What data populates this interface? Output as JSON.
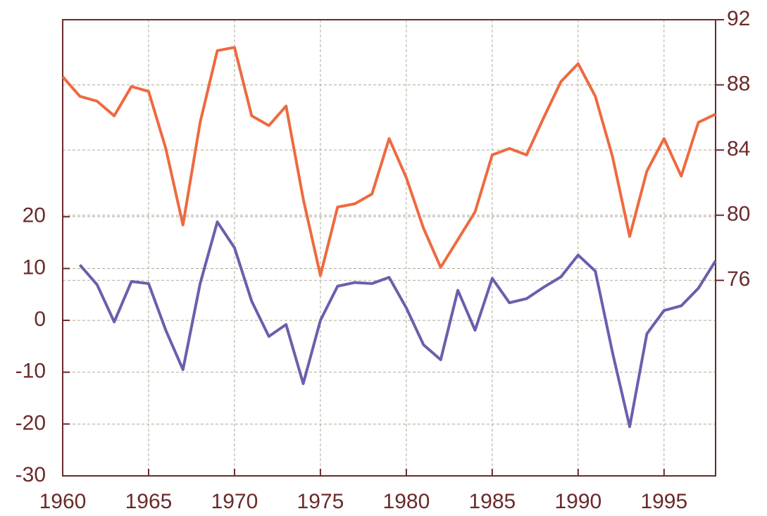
{
  "chart_data": {
    "type": "line",
    "x": [
      1960,
      1961,
      1962,
      1963,
      1964,
      1965,
      1966,
      1967,
      1968,
      1969,
      1970,
      1971,
      1972,
      1973,
      1974,
      1975,
      1976,
      1977,
      1978,
      1979,
      1980,
      1981,
      1982,
      1983,
      1984,
      1985,
      1986,
      1987,
      1988,
      1989,
      1990,
      1991,
      1992,
      1993,
      1994,
      1995,
      1996,
      1997,
      1998
    ],
    "series": [
      {
        "color": "#6a5fad",
        "axis": "y",
        "values": [
          null,
          10.7,
          6.9,
          -0.3,
          7.5,
          7.1,
          -1.9,
          -9.5,
          7.1,
          19.0,
          14.0,
          3.7,
          -3.1,
          -0.8,
          -12.2,
          0,
          6.6,
          7.3,
          7.1,
          8.3,
          2.4,
          -4.7,
          -7.6,
          5.8,
          -1.9,
          8.1,
          3.4,
          4.2,
          6.4,
          8.4,
          12.6,
          9.5,
          -6.2,
          -20.5,
          -2.6,
          1.9,
          2.8,
          6.2,
          11.5
        ]
      },
      {
        "color": "#ee6a40",
        "axis": "y2",
        "values": [
          88.5,
          87.3,
          87.0,
          86.1,
          87.9,
          87.6,
          84.1,
          79.4,
          85.7,
          90.1,
          90.3,
          86.1,
          85.5,
          86.7,
          81.0,
          76.3,
          80.5,
          80.7,
          81.3,
          84.7,
          82.3,
          79.2,
          76.8,
          78.5,
          80.2,
          83.7,
          84.1,
          83.7,
          86.0,
          88.2,
          89.3,
          87.3,
          83.6,
          78.7,
          82.7,
          84.7,
          82.4,
          85.7,
          86.2
        ]
      }
    ],
    "xlim": [
      1960,
      1998
    ],
    "xticks": [
      1960,
      1965,
      1970,
      1975,
      1980,
      1985,
      1990,
      1995
    ],
    "ylim": [
      -30,
      58
    ],
    "yticks": [
      -30,
      -20,
      -10,
      0,
      10,
      20
    ],
    "y2lim": [
      64,
      92
    ],
    "y2ticks": [
      76,
      80,
      84,
      88,
      92
    ],
    "grid": true
  }
}
